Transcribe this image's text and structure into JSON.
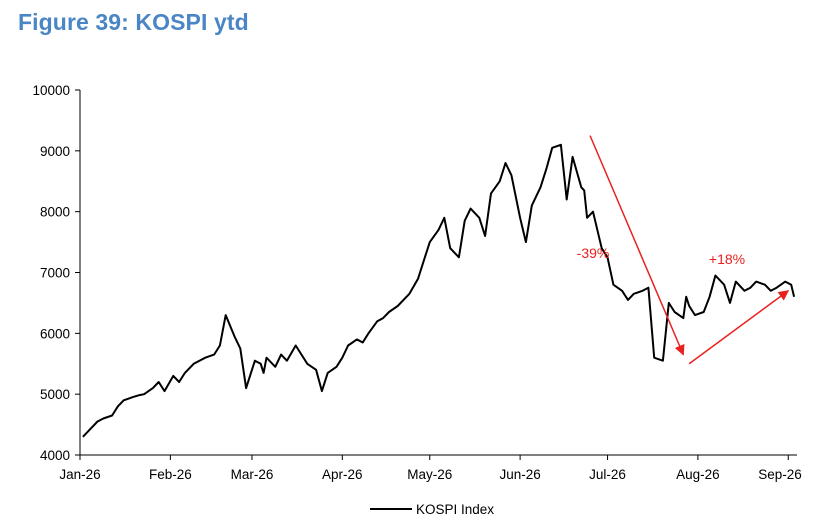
{
  "title": "Figure 39: KOSPI ytd",
  "chart_data": {
    "type": "line",
    "xlabel": "",
    "ylabel": "",
    "ylim": [
      4000,
      10000
    ],
    "yticks": [
      4000,
      5000,
      6000,
      7000,
      8000,
      9000,
      10000
    ],
    "xticks": [
      "Jan-26",
      "Feb-26",
      "Mar-26",
      "Apr-26",
      "May-26",
      "Jun-26",
      "Jul-26",
      "Aug-26",
      "Sep-26"
    ],
    "legend": "bottom-center",
    "series": [
      {
        "name": "KOSPI Index",
        "color": "#000000",
        "x": [
          "2026-01-02",
          "2026-01-05",
          "2026-01-07",
          "2026-01-09",
          "2026-01-12",
          "2026-01-14",
          "2026-01-16",
          "2026-01-19",
          "2026-01-21",
          "2026-01-23",
          "2026-01-26",
          "2026-01-28",
          "2026-01-30",
          "2026-02-02",
          "2026-02-04",
          "2026-02-06",
          "2026-02-09",
          "2026-02-11",
          "2026-02-13",
          "2026-02-16",
          "2026-02-18",
          "2026-02-20",
          "2026-02-23",
          "2026-02-25",
          "2026-02-27",
          "2026-03-02",
          "2026-03-04",
          "2026-03-05",
          "2026-03-06",
          "2026-03-09",
          "2026-03-11",
          "2026-03-13",
          "2026-03-16",
          "2026-03-18",
          "2026-03-20",
          "2026-03-23",
          "2026-03-25",
          "2026-03-27",
          "2026-03-30",
          "2026-04-01",
          "2026-04-03",
          "2026-04-06",
          "2026-04-08",
          "2026-04-10",
          "2026-04-13",
          "2026-04-15",
          "2026-04-17",
          "2026-04-20",
          "2026-04-22",
          "2026-04-24",
          "2026-04-27",
          "2026-04-29",
          "2026-05-01",
          "2026-05-04",
          "2026-05-06",
          "2026-05-08",
          "2026-05-11",
          "2026-05-13",
          "2026-05-15",
          "2026-05-18",
          "2026-05-20",
          "2026-05-22",
          "2026-05-25",
          "2026-05-27",
          "2026-05-29",
          "2026-06-01",
          "2026-06-03",
          "2026-06-05",
          "2026-06-08",
          "2026-06-10",
          "2026-06-12",
          "2026-06-15",
          "2026-06-17",
          "2026-06-19",
          "2026-06-22",
          "2026-06-23",
          "2026-06-24",
          "2026-06-26",
          "2026-06-29",
          "2026-07-01",
          "2026-07-03",
          "2026-07-06",
          "2026-07-08",
          "2026-07-10",
          "2026-07-13",
          "2026-07-15",
          "2026-07-17",
          "2026-07-20",
          "2026-07-22",
          "2026-07-24",
          "2026-07-27",
          "2026-07-28",
          "2026-07-29",
          "2026-07-31",
          "2026-08-03",
          "2026-08-05",
          "2026-08-07",
          "2026-08-10",
          "2026-08-12",
          "2026-08-14",
          "2026-08-17",
          "2026-08-19",
          "2026-08-21",
          "2026-08-24",
          "2026-08-26",
          "2026-08-28",
          "2026-08-31",
          "2026-09-02",
          "2026-09-03"
        ],
        "y": [
          4300,
          4450,
          4550,
          4600,
          4650,
          4800,
          4900,
          4950,
          4980,
          5000,
          5100,
          5200,
          5050,
          5300,
          5200,
          5350,
          5500,
          5550,
          5600,
          5650,
          5800,
          6300,
          5950,
          5750,
          5100,
          5550,
          5500,
          5350,
          5600,
          5450,
          5650,
          5550,
          5800,
          5650,
          5500,
          5400,
          5050,
          5350,
          5450,
          5600,
          5800,
          5900,
          5850,
          6000,
          6200,
          6250,
          6350,
          6450,
          6550,
          6650,
          6900,
          7200,
          7500,
          7700,
          7900,
          7400,
          7250,
          7850,
          8050,
          7900,
          7600,
          8300,
          8500,
          8800,
          8600,
          7900,
          7500,
          8100,
          8400,
          8700,
          9050,
          9100,
          8200,
          8900,
          8400,
          8350,
          7900,
          8000,
          7400,
          7250,
          6800,
          6700,
          6550,
          6650,
          6700,
          6750,
          5600,
          5550,
          6500,
          6350,
          6250,
          6600,
          6450,
          6300,
          6350,
          6600,
          6950,
          6800,
          6500,
          6850,
          6700,
          6750,
          6850,
          6800,
          6700,
          6750,
          6850,
          6800,
          6600
        ],
        "date_range": [
          "2026-01-02",
          "2026-09-03"
        ]
      }
    ],
    "annotations": [
      {
        "text": "-39%",
        "color": "#e8211f",
        "arrow_from": [
          "2026-06-25",
          9250
        ],
        "arrow_to": [
          "2026-07-27",
          5650
        ]
      },
      {
        "text": "+18%",
        "color": "#e8211f",
        "arrow_from": [
          "2026-07-29",
          5500
        ],
        "arrow_to": [
          "2026-09-01",
          6700
        ]
      }
    ]
  }
}
